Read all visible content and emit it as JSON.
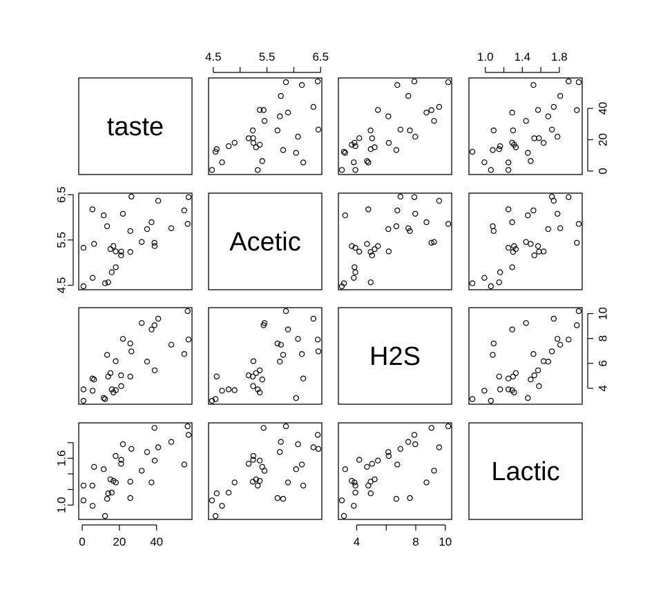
{
  "chart_data": {
    "type": "scatter",
    "variables": [
      {
        "name": "taste",
        "range": [
          0,
          57.2
        ],
        "ticks": [
          0,
          20,
          40
        ],
        "tick_labels": [
          "0",
          "20",
          "40"
        ]
      },
      {
        "name": "Acetic",
        "range": [
          4.477,
          6.458
        ],
        "ticks": [
          4.5,
          5.5,
          6.5
        ],
        "tick_labels": [
          "4.5",
          "5.5",
          "6.5"
        ],
        "minor_ticks": [
          4.5,
          5.0,
          5.5,
          6.0,
          6.5
        ]
      },
      {
        "name": "H2S",
        "range": [
          2.996,
          10.199
        ],
        "ticks": [
          4,
          6,
          8,
          10
        ],
        "tick_labels": [
          "4",
          "8",
          "10"
        ],
        "tick_label_values": [
          4,
          8,
          10
        ],
        "left_tick_label_values": [
          4,
          8,
          10
        ],
        "right_tick_labels": [
          "4",
          "6",
          "8",
          "10"
        ]
      },
      {
        "name": "Lactic",
        "range": [
          0.86,
          2.01
        ],
        "ticks": [
          1.0,
          1.2,
          1.4,
          1.6,
          1.8
        ],
        "tick_labels": [
          "1.0",
          "1.4",
          "1.8"
        ],
        "tick_label_values": [
          1.0,
          1.4,
          1.8
        ],
        "left_tick_labels": [
          "1.0",
          "1.6"
        ],
        "left_tick_label_values": [
          1.0,
          1.6
        ]
      }
    ],
    "points": [
      {
        "taste": 12.3,
        "Acetic": 4.543,
        "H2S": 3.135,
        "Lactic": 0.86
      },
      {
        "taste": 20.9,
        "Acetic": 5.159,
        "H2S": 5.043,
        "Lactic": 1.53
      },
      {
        "taste": 39.0,
        "Acetic": 5.366,
        "H2S": 5.438,
        "Lactic": 1.57
      },
      {
        "taste": 47.9,
        "Acetic": 5.759,
        "H2S": 7.496,
        "Lactic": 1.81
      },
      {
        "taste": 5.6,
        "Acetic": 4.663,
        "H2S": 3.807,
        "Lactic": 0.99
      },
      {
        "taste": 25.9,
        "Acetic": 5.697,
        "H2S": 7.601,
        "Lactic": 1.09
      },
      {
        "taste": 37.3,
        "Acetic": 5.892,
        "H2S": 8.726,
        "Lactic": 1.29
      },
      {
        "taste": 21.9,
        "Acetic": 6.078,
        "H2S": 7.966,
        "Lactic": 1.78
      },
      {
        "taste": 18.1,
        "Acetic": 4.898,
        "H2S": 3.85,
        "Lactic": 1.29
      },
      {
        "taste": 21.0,
        "Acetic": 5.242,
        "H2S": 4.174,
        "Lactic": 1.58
      },
      {
        "taste": 34.9,
        "Acetic": 5.74,
        "H2S": 6.142,
        "Lactic": 1.68
      },
      {
        "taste": 57.2,
        "Acetic": 6.446,
        "H2S": 7.908,
        "Lactic": 1.9
      },
      {
        "taste": 0.7,
        "Acetic": 4.477,
        "H2S": 2.996,
        "Lactic": 1.06
      },
      {
        "taste": 25.9,
        "Acetic": 5.236,
        "H2S": 4.942,
        "Lactic": 1.3
      },
      {
        "taste": 54.9,
        "Acetic": 6.151,
        "H2S": 6.752,
        "Lactic": 1.52
      },
      {
        "taste": 40.9,
        "Acetic": 6.365,
        "H2S": 9.588,
        "Lactic": 1.74
      },
      {
        "taste": 15.9,
        "Acetic": 4.787,
        "H2S": 3.912,
        "Lactic": 1.16
      },
      {
        "taste": 6.4,
        "Acetic": 5.412,
        "H2S": 4.7,
        "Lactic": 1.49
      },
      {
        "taste": 18.0,
        "Acetic": 5.247,
        "H2S": 6.174,
        "Lactic": 1.63
      },
      {
        "taste": 38.9,
        "Acetic": 5.438,
        "H2S": 9.064,
        "Lactic": 1.99
      },
      {
        "taste": 14.0,
        "Acetic": 4.564,
        "H2S": 4.949,
        "Lactic": 1.15
      },
      {
        "taste": 15.2,
        "Acetic": 5.298,
        "H2S": 5.22,
        "Lactic": 1.33
      },
      {
        "taste": 32.0,
        "Acetic": 5.455,
        "H2S": 9.242,
        "Lactic": 1.44
      },
      {
        "taste": 56.7,
        "Acetic": 5.855,
        "H2S": 10.199,
        "Lactic": 2.01
      },
      {
        "taste": 16.8,
        "Acetic": 5.366,
        "H2S": 3.664,
        "Lactic": 1.31
      },
      {
        "taste": 11.6,
        "Acetic": 6.043,
        "H2S": 3.219,
        "Lactic": 1.46
      },
      {
        "taste": 26.5,
        "Acetic": 6.458,
        "H2S": 6.962,
        "Lactic": 1.72
      },
      {
        "taste": 0.7,
        "Acetic": 5.328,
        "H2S": 3.912,
        "Lactic": 1.25
      },
      {
        "taste": 13.4,
        "Acetic": 5.802,
        "H2S": 6.685,
        "Lactic": 1.08
      },
      {
        "taste": 5.5,
        "Acetic": 6.176,
        "H2S": 4.787,
        "Lactic": 1.25
      }
    ],
    "diagonal_labels": [
      "taste",
      "Acetic",
      "H2S",
      "Lactic"
    ],
    "grid": false,
    "legend": "none",
    "marker": "open-circle",
    "colors": {
      "points": "#000000",
      "frame": "#000000",
      "background": "#ffffff"
    }
  }
}
